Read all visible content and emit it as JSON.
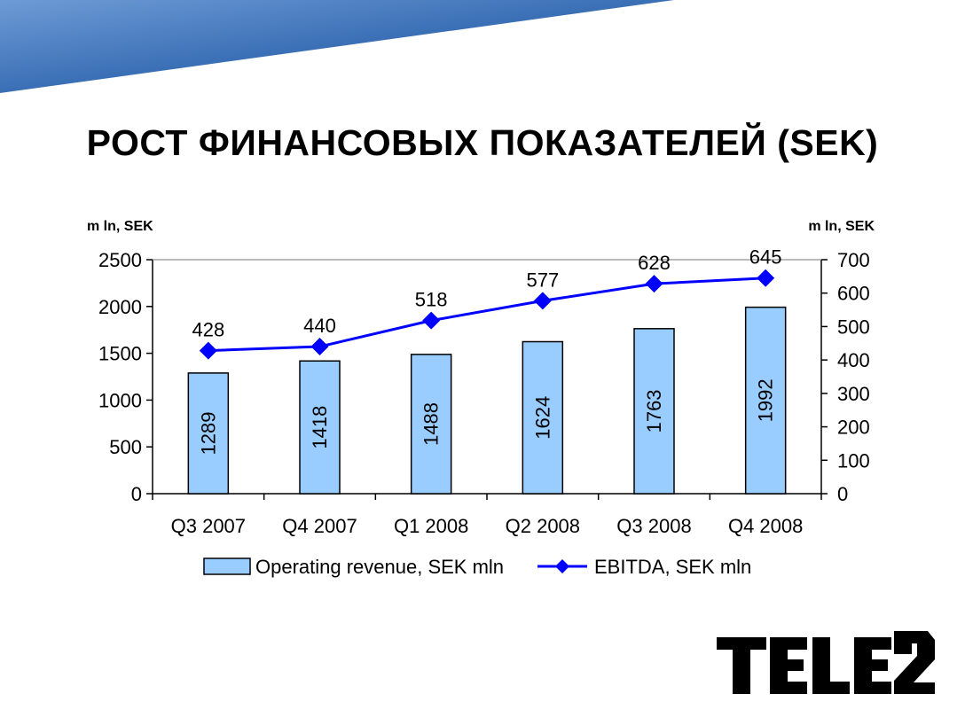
{
  "slide": {
    "title": "РОСТ ФИНАНСОВЫХ ПОКАЗАТЕЛЕЙ (SEK)",
    "logo_text": "TELE2"
  },
  "colors": {
    "bar_fill": "#99CCFF",
    "bar_stroke": "#000000",
    "line": "#0000FF",
    "banner_dark": "#1F4E8C",
    "banner_light": "#5B8FD0"
  },
  "chart_data": {
    "type": "bar",
    "categories": [
      "Q3 2007",
      "Q4 2007",
      "Q1 2008",
      "Q2 2008",
      "Q3 2008",
      "Q4 2008"
    ],
    "left_unit": "m ln, SEK",
    "right_unit": "m ln, SEK",
    "y_left": {
      "min": 0,
      "max": 2500,
      "ticks": [
        0,
        500,
        1000,
        1500,
        2000,
        2500
      ]
    },
    "y_right": {
      "min": 0,
      "max": 700,
      "ticks": [
        0,
        100,
        200,
        300,
        400,
        500,
        600,
        700
      ]
    },
    "series": [
      {
        "name": "Operating revenue, SEK mln",
        "type": "bar",
        "axis": "left",
        "values": [
          1289,
          1418,
          1488,
          1624,
          1763,
          1992
        ]
      },
      {
        "name": "EBITDA, SEK mln",
        "type": "line",
        "axis": "right",
        "values": [
          428,
          440,
          518,
          577,
          628,
          645
        ]
      }
    ],
    "grid": false,
    "legend": "bottom"
  }
}
